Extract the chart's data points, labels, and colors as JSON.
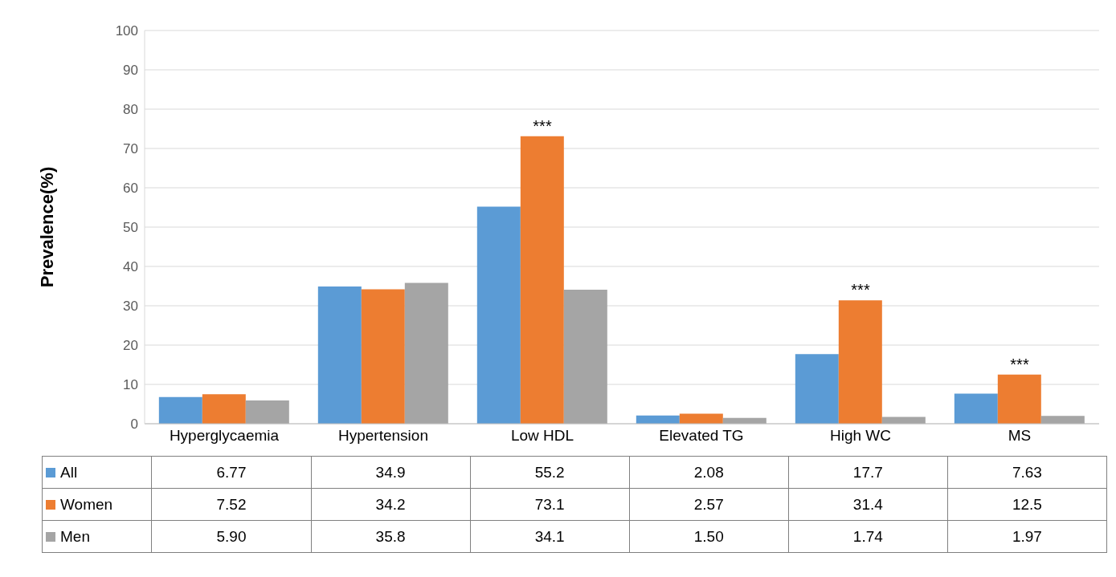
{
  "chart_data": {
    "type": "bar",
    "ylabel": "Prevalence(%)",
    "categories": [
      "Hyperglycaemia",
      "Hypertension",
      "Low HDL",
      "Elevated TG",
      "High WC",
      "MS"
    ],
    "series": [
      {
        "name": "All",
        "color": "#5b9bd5",
        "values": [
          6.77,
          34.9,
          55.2,
          2.08,
          17.7,
          7.63
        ],
        "value_labels": [
          "6.77",
          "34.9",
          "55.2",
          "2.08",
          "17.7",
          "7.63"
        ]
      },
      {
        "name": "Women",
        "color": "#ed7d31",
        "values": [
          7.52,
          34.2,
          73.1,
          2.57,
          31.4,
          12.5
        ],
        "value_labels": [
          "7.52",
          "34.2",
          "73.1",
          "2.57",
          "31.4",
          "12.5"
        ]
      },
      {
        "name": "Men",
        "color": "#a5a5a5",
        "values": [
          5.9,
          35.8,
          34.1,
          1.5,
          1.74,
          1.97
        ],
        "value_labels": [
          "5.90",
          "35.8",
          "34.1",
          "1.50",
          "1.74",
          "1.97"
        ]
      }
    ],
    "ylim": [
      0,
      100
    ],
    "yticks": [
      0,
      10,
      20,
      30,
      40,
      50,
      60,
      70,
      80,
      90,
      100
    ],
    "grid": "y",
    "legend": "bottom",
    "annotations": [
      {
        "text": "***",
        "x": "Low HDL",
        "y": 73.1
      },
      {
        "text": "***",
        "x": "High WC",
        "y": 31.4
      },
      {
        "text": "***",
        "x": "MS",
        "y": 12.5
      }
    ]
  }
}
